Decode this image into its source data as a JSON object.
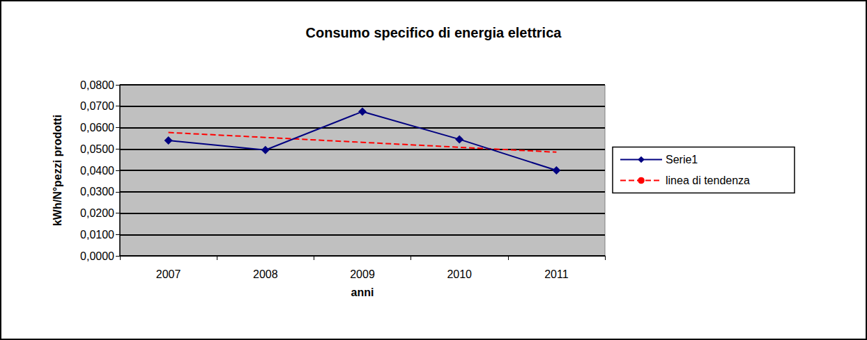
{
  "chart_data": {
    "type": "line",
    "title": "Consumo specifico di energia elettrica",
    "x_label": "anni",
    "y_label": "kWh/N°pezzi prodotti",
    "categories": [
      "2007",
      "2008",
      "2009",
      "2010",
      "2011"
    ],
    "series": [
      {
        "name": "Serie1",
        "color": "#000080",
        "marker": "diamond",
        "line_style": "solid",
        "values": [
          0.054,
          0.0495,
          0.0675,
          0.0545,
          0.04
        ]
      },
      {
        "name": "linea di tendenza",
        "color": "#ff0000",
        "marker": "none",
        "line_style": "dashed",
        "values": [
          0.0577,
          0.0554,
          0.0531,
          0.0508,
          0.0485
        ]
      }
    ],
    "ylim": [
      0,
      0.08
    ],
    "yticks": [
      {
        "value": 0,
        "label": "0,0000"
      },
      {
        "value": 0.01,
        "label": "0,0100"
      },
      {
        "value": 0.02,
        "label": "0,0200"
      },
      {
        "value": 0.03,
        "label": "0,0300"
      },
      {
        "value": 0.04,
        "label": "0,0400"
      },
      {
        "value": 0.05,
        "label": "0,0500"
      },
      {
        "value": 0.06,
        "label": "0,0600"
      },
      {
        "value": 0.07,
        "label": "0,0700"
      },
      {
        "value": 0.08,
        "label": "0,0800"
      }
    ],
    "grid": true,
    "legend": "right"
  }
}
